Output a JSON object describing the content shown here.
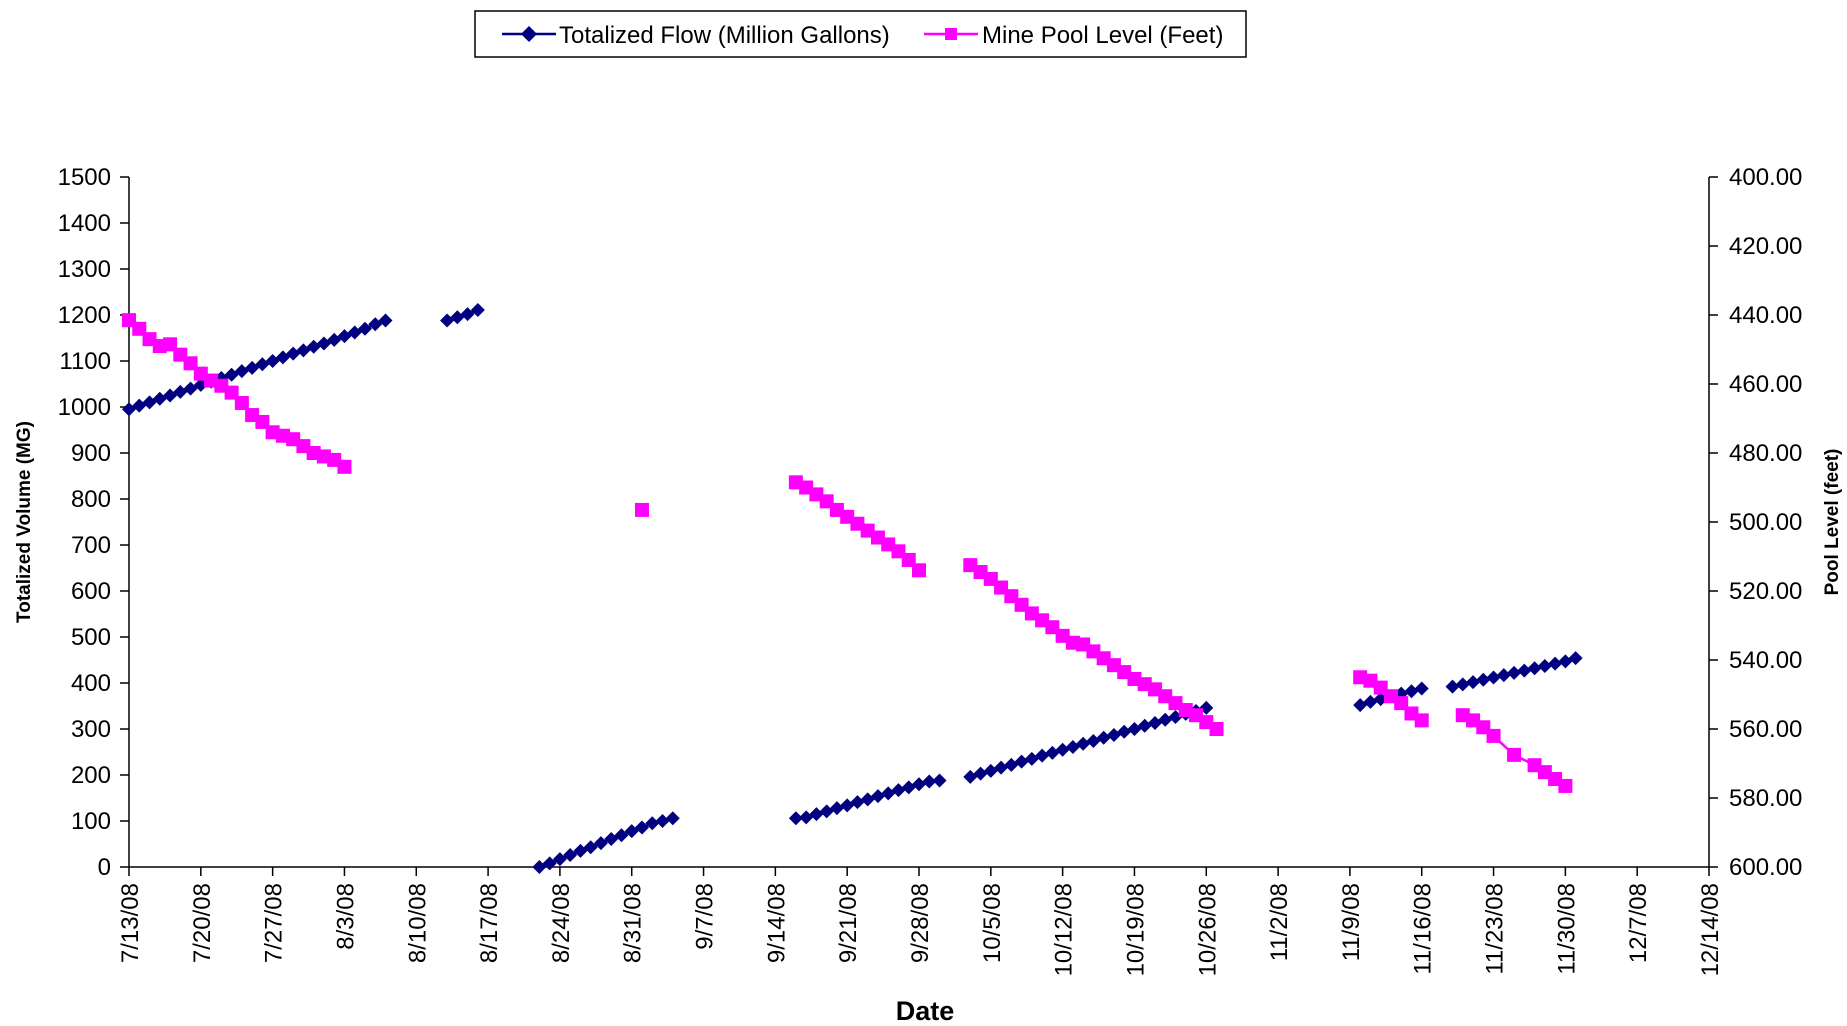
{
  "chart_data": {
    "type": "line",
    "xlabel": "Date",
    "ylabel_left": "Totalized Volume (MG)",
    "ylabel_right": "Pool Level (feet)",
    "ylim_left": [
      0,
      1500
    ],
    "yticks_left": [
      "0",
      "100",
      "200",
      "300",
      "400",
      "500",
      "600",
      "700",
      "800",
      "900",
      "1000",
      "1100",
      "1200",
      "1300",
      "1400",
      "1500"
    ],
    "ylim_right_inverted": [
      400,
      600
    ],
    "yticks_right": [
      "400.00",
      "420.00",
      "440.00",
      "460.00",
      "480.00",
      "500.00",
      "520.00",
      "540.00",
      "560.00",
      "580.00",
      "600.00"
    ],
    "x_start": "2008-07-13",
    "x_end": "2008-12-14",
    "xtick_labels": [
      "7/13/08",
      "7/20/08",
      "7/27/08",
      "8/3/08",
      "8/10/08",
      "8/17/08",
      "8/24/08",
      "8/31/08",
      "9/7/08",
      "9/14/08",
      "9/21/08",
      "9/28/08",
      "10/5/08",
      "10/12/08",
      "10/19/08",
      "10/26/08",
      "11/2/08",
      "11/9/08",
      "11/16/08",
      "11/23/08",
      "11/30/08",
      "12/7/08",
      "12/14/08"
    ],
    "grid": false,
    "legend_position": "top-center",
    "series": [
      {
        "name": "Totalized Flow (Million Gallons)",
        "axis": "left",
        "color": "#000080",
        "marker": "diamond",
        "segments": [
          [
            [
              "2008-07-13",
              995
            ],
            [
              "2008-07-14",
              1003
            ],
            [
              "2008-07-15",
              1010
            ],
            [
              "2008-07-16",
              1018
            ],
            [
              "2008-07-17",
              1025
            ],
            [
              "2008-07-18",
              1033
            ],
            [
              "2008-07-19",
              1040
            ],
            [
              "2008-07-20",
              1048
            ],
            [
              "2008-07-21",
              1055
            ],
            [
              "2008-07-22",
              1063
            ],
            [
              "2008-07-23",
              1070
            ],
            [
              "2008-07-24",
              1078
            ],
            [
              "2008-07-25",
              1085
            ],
            [
              "2008-07-26",
              1093
            ],
            [
              "2008-07-27",
              1100
            ],
            [
              "2008-07-28",
              1108
            ],
            [
              "2008-07-29",
              1116
            ],
            [
              "2008-07-30",
              1123
            ],
            [
              "2008-07-31",
              1131
            ],
            [
              "2008-08-01",
              1138
            ],
            [
              "2008-08-02",
              1146
            ],
            [
              "2008-08-03",
              1154
            ],
            [
              "2008-08-04",
              1162
            ],
            [
              "2008-08-05",
              1170
            ],
            [
              "2008-08-06",
              1180
            ],
            [
              "2008-08-07",
              1188
            ]
          ],
          [
            [
              "2008-08-13",
              1188
            ],
            [
              "2008-08-14",
              1195
            ],
            [
              "2008-08-15",
              1202
            ],
            [
              "2008-08-16",
              1211
            ]
          ],
          [
            [
              "2008-08-22",
              0
            ],
            [
              "2008-08-23",
              8
            ],
            [
              "2008-08-24",
              17
            ],
            [
              "2008-08-25",
              26
            ],
            [
              "2008-08-26",
              35
            ],
            [
              "2008-08-27",
              43
            ],
            [
              "2008-08-28",
              52
            ],
            [
              "2008-08-29",
              61
            ],
            [
              "2008-08-30",
              69
            ],
            [
              "2008-08-31",
              78
            ],
            [
              "2008-09-01",
              86
            ],
            [
              "2008-09-02",
              95
            ],
            [
              "2008-09-03",
              100
            ],
            [
              "2008-09-04",
              106
            ]
          ],
          [
            [
              "2008-09-16",
              106
            ],
            [
              "2008-09-17",
              108
            ],
            [
              "2008-09-18",
              115
            ],
            [
              "2008-09-19",
              121
            ],
            [
              "2008-09-20",
              128
            ],
            [
              "2008-09-21",
              134
            ],
            [
              "2008-09-22",
              141
            ],
            [
              "2008-09-23",
              147
            ],
            [
              "2008-09-24",
              154
            ],
            [
              "2008-09-25",
              160
            ],
            [
              "2008-09-26",
              167
            ],
            [
              "2008-09-27",
              173
            ],
            [
              "2008-09-28",
              180
            ],
            [
              "2008-09-29",
              186
            ],
            [
              "2008-09-30",
              188
            ]
          ],
          [
            [
              "2008-10-03",
              196
            ],
            [
              "2008-10-04",
              203
            ],
            [
              "2008-10-05",
              209
            ],
            [
              "2008-10-06",
              216
            ],
            [
              "2008-10-07",
              222
            ],
            [
              "2008-10-08",
              229
            ],
            [
              "2008-10-09",
              235
            ],
            [
              "2008-10-10",
              242
            ],
            [
              "2008-10-11",
              248
            ],
            [
              "2008-10-12",
              255
            ],
            [
              "2008-10-13",
              261
            ],
            [
              "2008-10-14",
              268
            ],
            [
              "2008-10-15",
              274
            ],
            [
              "2008-10-16",
              281
            ],
            [
              "2008-10-17",
              287
            ],
            [
              "2008-10-18",
              294
            ],
            [
              "2008-10-19",
              300
            ],
            [
              "2008-10-20",
              307
            ],
            [
              "2008-10-21",
              313
            ],
            [
              "2008-10-22",
              320
            ],
            [
              "2008-10-23",
              326
            ],
            [
              "2008-10-24",
              333
            ],
            [
              "2008-10-25",
              339
            ],
            [
              "2008-10-26",
              346
            ]
          ],
          [
            [
              "2008-11-10",
              352
            ],
            [
              "2008-11-11",
              359
            ],
            [
              "2008-11-12",
              365
            ],
            [
              "2008-11-13",
              371
            ],
            [
              "2008-11-14",
              377
            ],
            [
              "2008-11-15",
              382
            ],
            [
              "2008-11-16",
              388
            ]
          ],
          [
            [
              "2008-11-19",
              392
            ],
            [
              "2008-11-20",
              397
            ],
            [
              "2008-11-21",
              402
            ],
            [
              "2008-11-22",
              407
            ],
            [
              "2008-11-23",
              412
            ],
            [
              "2008-11-24",
              417
            ],
            [
              "2008-11-25",
              422
            ],
            [
              "2008-11-26",
              427
            ],
            [
              "2008-11-27",
              432
            ],
            [
              "2008-11-28",
              437
            ],
            [
              "2008-11-29",
              442
            ],
            [
              "2008-11-30",
              447
            ],
            [
              "2008-12-01",
              454
            ]
          ]
        ]
      },
      {
        "name": "Mine Pool Level (Feet)",
        "axis": "right",
        "color": "#FF00FF",
        "marker": "square",
        "segments": [
          [
            [
              "2008-07-13",
              441.5
            ],
            [
              "2008-07-14",
              444
            ],
            [
              "2008-07-15",
              447
            ],
            [
              "2008-07-16",
              449
            ],
            [
              "2008-07-17",
              448.5
            ],
            [
              "2008-07-18",
              451.5
            ],
            [
              "2008-07-19",
              454
            ],
            [
              "2008-07-20",
              457
            ],
            [
              "2008-07-21",
              459
            ],
            [
              "2008-07-22",
              460.5
            ],
            [
              "2008-07-23",
              462.5
            ],
            [
              "2008-07-24",
              465.5
            ],
            [
              "2008-07-25",
              469
            ],
            [
              "2008-07-26",
              471
            ],
            [
              "2008-07-27",
              474
            ],
            [
              "2008-07-28",
              475
            ],
            [
              "2008-07-29",
              476
            ],
            [
              "2008-07-30",
              478
            ],
            [
              "2008-07-31",
              480
            ],
            [
              "2008-08-01",
              481
            ],
            [
              "2008-08-02",
              482
            ],
            [
              "2008-08-03",
              484
            ]
          ],
          [
            [
              "2008-09-01",
              496.5
            ]
          ],
          [
            [
              "2008-09-16",
              488.5
            ],
            [
              "2008-09-17",
              490
            ],
            [
              "2008-09-18",
              492
            ],
            [
              "2008-09-19",
              494
            ],
            [
              "2008-09-20",
              496.5
            ],
            [
              "2008-09-21",
              498.5
            ],
            [
              "2008-09-22",
              500.5
            ],
            [
              "2008-09-23",
              502.5
            ],
            [
              "2008-09-24",
              504.5
            ],
            [
              "2008-09-25",
              506.5
            ],
            [
              "2008-09-26",
              508.5
            ],
            [
              "2008-09-27",
              511
            ],
            [
              "2008-09-28",
              514
            ]
          ],
          [
            [
              "2008-10-03",
              512.5
            ],
            [
              "2008-10-04",
              514.5
            ],
            [
              "2008-10-05",
              516.5
            ],
            [
              "2008-10-06",
              519
            ],
            [
              "2008-10-07",
              521.5
            ],
            [
              "2008-10-08",
              524
            ],
            [
              "2008-10-09",
              526.5
            ],
            [
              "2008-10-10",
              528.5
            ],
            [
              "2008-10-11",
              530.5
            ],
            [
              "2008-10-12",
              533
            ],
            [
              "2008-10-13",
              535
            ],
            [
              "2008-10-14",
              535.5
            ],
            [
              "2008-10-15",
              537.5
            ],
            [
              "2008-10-16",
              539.5
            ],
            [
              "2008-10-17",
              541.5
            ],
            [
              "2008-10-18",
              543.5
            ],
            [
              "2008-10-19",
              545.5
            ],
            [
              "2008-10-20",
              547
            ],
            [
              "2008-10-21",
              548.5
            ],
            [
              "2008-10-22",
              550.5
            ],
            [
              "2008-10-23",
              552.5
            ],
            [
              "2008-10-24",
              554.5
            ],
            [
              "2008-10-25",
              556
            ],
            [
              "2008-10-26",
              558
            ],
            [
              "2008-10-27",
              560
            ]
          ],
          [
            [
              "2008-11-10",
              545
            ],
            [
              "2008-11-11",
              546
            ],
            [
              "2008-11-12",
              548
            ],
            [
              "2008-11-13",
              550.5
            ],
            [
              "2008-11-14",
              552.5
            ],
            [
              "2008-11-15",
              555.5
            ],
            [
              "2008-11-16",
              557.5
            ]
          ],
          [
            [
              "2008-11-20",
              556
            ],
            [
              "2008-11-21",
              557.5
            ],
            [
              "2008-11-22",
              559.5
            ],
            [
              "2008-11-23",
              562
            ],
            [
              "2008-11-25",
              567.5
            ],
            [
              "2008-11-27",
              570.5
            ],
            [
              "2008-11-28",
              572.5
            ],
            [
              "2008-11-29",
              574.5
            ],
            [
              "2008-11-30",
              576.5
            ]
          ]
        ]
      }
    ]
  }
}
